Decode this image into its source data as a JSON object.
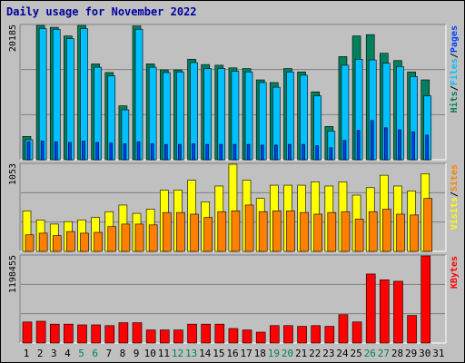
{
  "chart_data": {
    "type": "bar",
    "title": "Daily usage for November 2022",
    "categories": [
      "1",
      "2",
      "3",
      "4",
      "5",
      "6",
      "7",
      "8",
      "9",
      "10",
      "11",
      "12",
      "13",
      "14",
      "15",
      "16",
      "17",
      "18",
      "19",
      "20",
      "21",
      "22",
      "23",
      "24",
      "25",
      "26",
      "27",
      "28",
      "29",
      "30",
      "31"
    ],
    "weekend_days": [
      "5",
      "6",
      "12",
      "13",
      "19",
      "20",
      "26",
      "27"
    ],
    "colors": {
      "hits": "#00805c",
      "files": "#00c0ff",
      "pages": "#0040ff",
      "visits": "#ffff00",
      "sites": "#ff8000",
      "kbytes": "#ff0000",
      "weekday_label": "#000000",
      "weekend_label": "#00805c",
      "title": "#0000a0",
      "background": "#c0c0c0"
    },
    "panels": [
      {
        "id": "hits-files-pages",
        "max_label": "20185",
        "ymax": 20185,
        "legend": [
          {
            "text": "Hits",
            "color": "#00805c"
          },
          {
            "text": "/",
            "color": "#000000"
          },
          {
            "text": "Files",
            "color": "#00c0ff"
          },
          {
            "text": "/",
            "color": "#000000"
          },
          {
            "text": "Pages",
            "color": "#0040ff"
          }
        ],
        "series": [
          {
            "name": "Hits",
            "color": "#00805c",
            "values": [
              3500,
              20185,
              19900,
              18600,
              20180,
              14400,
              13100,
              8100,
              20100,
              14400,
              13500,
              13500,
              15100,
              14300,
              14200,
              13800,
              13700,
              12000,
              11600,
              13700,
              13200,
              10200,
              5000,
              15500,
              18600,
              18800,
              16000,
              14900,
              13200,
              12000,
              null
            ]
          },
          {
            "name": "Files",
            "color": "#00c0ff",
            "values": [
              3000,
              19700,
              19600,
              18200,
              19700,
              13900,
              12600,
              7500,
              19600,
              13900,
              13100,
              13200,
              14600,
              13700,
              13700,
              13300,
              13200,
              11600,
              10900,
              13200,
              12700,
              9600,
              4300,
              14200,
              15100,
              15000,
              14500,
              14000,
              12500,
              9600,
              null
            ]
          },
          {
            "name": "Pages",
            "color": "#0040ff",
            "values": [
              2700,
              2800,
              2700,
              2600,
              2800,
              2600,
              2500,
              2400,
              2700,
              2400,
              2300,
              2300,
              2400,
              2300,
              2300,
              2300,
              2300,
              2200,
              2200,
              2300,
              2300,
              2100,
              1800,
              2900,
              4400,
              5900,
              4800,
              4500,
              4200,
              3700,
              null
            ]
          }
        ]
      },
      {
        "id": "visits-sites",
        "max_label": "1053",
        "ymax": 1053,
        "legend": [
          {
            "text": "Visits",
            "color": "#ffff00"
          },
          {
            "text": "/",
            "color": "#000000"
          },
          {
            "text": "Sites",
            "color": "#ff8000"
          }
        ],
        "series": [
          {
            "name": "Visits",
            "color": "#ffff00",
            "values": [
              490,
              380,
              330,
              360,
              380,
              410,
              480,
              560,
              460,
              510,
              740,
              740,
              860,
              600,
              790,
              1053,
              860,
              640,
              800,
              800,
              800,
              840,
              790,
              840,
              680,
              770,
              920,
              790,
              730,
              940,
              null
            ]
          },
          {
            "name": "Sites",
            "color": "#ff8000",
            "values": [
              200,
              220,
              190,
              240,
              220,
              230,
              300,
              330,
              330,
              320,
              470,
              470,
              450,
              410,
              480,
              490,
              560,
              480,
              490,
              490,
              470,
              450,
              470,
              480,
              390,
              480,
              510,
              450,
              440,
              640,
              null
            ]
          }
        ]
      },
      {
        "id": "kbytes",
        "max_label": "1198455",
        "ymax": 1198455,
        "legend": [
          {
            "text": "KBytes",
            "color": "#ff0000"
          }
        ],
        "series": [
          {
            "name": "KBytes",
            "color": "#ff0000",
            "values": [
              290000,
              300000,
              260000,
              260000,
              250000,
              250000,
              240000,
              280000,
              280000,
              180000,
              180000,
              180000,
              260000,
              260000,
              260000,
              200000,
              180000,
              150000,
              240000,
              240000,
              230000,
              240000,
              230000,
              390000,
              290000,
              950000,
              870000,
              850000,
              380000,
              1198455,
              null
            ]
          }
        ]
      }
    ]
  }
}
